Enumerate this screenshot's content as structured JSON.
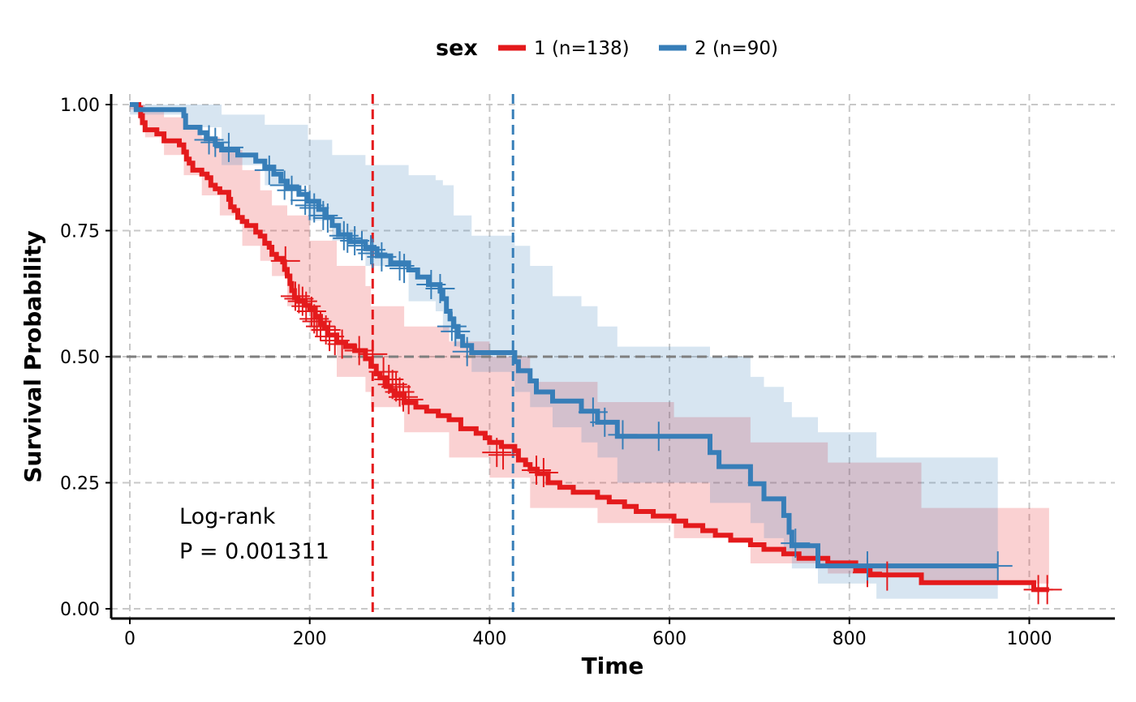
{
  "chart_data": {
    "type": "line",
    "subtype": "kaplan-meier",
    "xlabel": "Time",
    "ylabel": "Survival Probability",
    "xlim": [
      -20,
      1093
    ],
    "ylim": [
      -0.02,
      1.02
    ],
    "x_ticks": [
      0,
      200,
      400,
      600,
      800,
      1000
    ],
    "y_ticks": [
      0.0,
      0.25,
      0.5,
      0.75,
      1.0
    ],
    "y_tick_labels": [
      "0.00",
      "0.25",
      "0.50",
      "0.75",
      "1.00"
    ],
    "grid": true,
    "legend": {
      "title": "sex",
      "position": "top"
    },
    "reference_line_y": 0.5,
    "annotation": {
      "line1": "Log-rank",
      "line2": "P = 0.001311"
    },
    "series": [
      {
        "name": "1 (n=138)",
        "color": "#E41A1C",
        "median": 270,
        "steps": [
          [
            0,
            1.0
          ],
          [
            10,
            0.993
          ],
          [
            12,
            0.978
          ],
          [
            14,
            0.964
          ],
          [
            17,
            0.95
          ],
          [
            30,
            0.942
          ],
          [
            38,
            0.928
          ],
          [
            55,
            0.92
          ],
          [
            60,
            0.906
          ],
          [
            63,
            0.892
          ],
          [
            66,
            0.884
          ],
          [
            70,
            0.87
          ],
          [
            80,
            0.862
          ],
          [
            86,
            0.855
          ],
          [
            90,
            0.84
          ],
          [
            95,
            0.833
          ],
          [
            100,
            0.826
          ],
          [
            110,
            0.812
          ],
          [
            112,
            0.797
          ],
          [
            116,
            0.79
          ],
          [
            120,
            0.776
          ],
          [
            125,
            0.768
          ],
          [
            130,
            0.76
          ],
          [
            140,
            0.747
          ],
          [
            145,
            0.739
          ],
          [
            150,
            0.725
          ],
          [
            155,
            0.717
          ],
          [
            158,
            0.703
          ],
          [
            163,
            0.695
          ],
          [
            170,
            0.688
          ],
          [
            172,
            0.673
          ],
          [
            175,
            0.66
          ],
          [
            178,
            0.645
          ],
          [
            180,
            0.631
          ],
          [
            183,
            0.617
          ],
          [
            187,
            0.61
          ],
          [
            195,
            0.602
          ],
          [
            200,
            0.594
          ],
          [
            206,
            0.58
          ],
          [
            212,
            0.566
          ],
          [
            216,
            0.558
          ],
          [
            220,
            0.543
          ],
          [
            230,
            0.528
          ],
          [
            240,
            0.52
          ],
          [
            250,
            0.512
          ],
          [
            262,
            0.496
          ],
          [
            268,
            0.481
          ],
          [
            274,
            0.466
          ],
          [
            278,
            0.458
          ],
          [
            285,
            0.441
          ],
          [
            290,
            0.433
          ],
          [
            295,
            0.425
          ],
          [
            305,
            0.409
          ],
          [
            318,
            0.4
          ],
          [
            330,
            0.392
          ],
          [
            343,
            0.383
          ],
          [
            355,
            0.375
          ],
          [
            368,
            0.357
          ],
          [
            385,
            0.348
          ],
          [
            395,
            0.339
          ],
          [
            400,
            0.33
          ],
          [
            413,
            0.322
          ],
          [
            428,
            0.313
          ],
          [
            432,
            0.295
          ],
          [
            440,
            0.286
          ],
          [
            445,
            0.277
          ],
          [
            453,
            0.268
          ],
          [
            465,
            0.25
          ],
          [
            478,
            0.241
          ],
          [
            493,
            0.231
          ],
          [
            520,
            0.221
          ],
          [
            533,
            0.212
          ],
          [
            550,
            0.203
          ],
          [
            563,
            0.193
          ],
          [
            582,
            0.184
          ],
          [
            605,
            0.174
          ],
          [
            618,
            0.165
          ],
          [
            637,
            0.155
          ],
          [
            651,
            0.146
          ],
          [
            668,
            0.136
          ],
          [
            690,
            0.127
          ],
          [
            705,
            0.118
          ],
          [
            727,
            0.109
          ],
          [
            744,
            0.1
          ],
          [
            776,
            0.091
          ],
          [
            807,
            0.078
          ],
          [
            823,
            0.067
          ],
          [
            880,
            0.052
          ],
          [
            1005,
            0.038
          ],
          [
            1022,
            0.038
          ]
        ],
        "ci_upper": [
          [
            0,
            1.0
          ],
          [
            10,
            1.0
          ],
          [
            17,
            0.985
          ],
          [
            38,
            0.975
          ],
          [
            60,
            0.96
          ],
          [
            80,
            0.935
          ],
          [
            100,
            0.91
          ],
          [
            125,
            0.87
          ],
          [
            145,
            0.83
          ],
          [
            158,
            0.8
          ],
          [
            175,
            0.78
          ],
          [
            200,
            0.73
          ],
          [
            230,
            0.68
          ],
          [
            262,
            0.64
          ],
          [
            268,
            0.6
          ],
          [
            305,
            0.56
          ],
          [
            355,
            0.53
          ],
          [
            400,
            0.5
          ],
          [
            445,
            0.45
          ],
          [
            520,
            0.41
          ],
          [
            605,
            0.38
          ],
          [
            690,
            0.33
          ],
          [
            776,
            0.29
          ],
          [
            880,
            0.2
          ],
          [
            1022,
            0.2
          ]
        ],
        "ci_lower": [
          [
            0,
            0.99
          ],
          [
            10,
            0.97
          ],
          [
            17,
            0.935
          ],
          [
            38,
            0.9
          ],
          [
            60,
            0.86
          ],
          [
            80,
            0.82
          ],
          [
            100,
            0.78
          ],
          [
            125,
            0.72
          ],
          [
            145,
            0.69
          ],
          [
            158,
            0.66
          ],
          [
            175,
            0.6
          ],
          [
            200,
            0.55
          ],
          [
            230,
            0.46
          ],
          [
            262,
            0.43
          ],
          [
            268,
            0.4
          ],
          [
            305,
            0.35
          ],
          [
            355,
            0.3
          ],
          [
            400,
            0.26
          ],
          [
            445,
            0.2
          ],
          [
            520,
            0.17
          ],
          [
            605,
            0.14
          ],
          [
            690,
            0.09
          ],
          [
            776,
            0.07
          ],
          [
            880,
            0.05
          ],
          [
            1022,
            0.05
          ]
        ],
        "censored": [
          [
            173,
            0.69
          ],
          [
            184,
            0.62
          ],
          [
            188,
            0.615
          ],
          [
            192,
            0.61
          ],
          [
            196,
            0.6
          ],
          [
            202,
            0.59
          ],
          [
            205,
            0.575
          ],
          [
            208,
            0.57
          ],
          [
            212,
            0.56
          ],
          [
            218,
            0.553
          ],
          [
            222,
            0.54
          ],
          [
            228,
            0.532
          ],
          [
            236,
            0.525
          ],
          [
            255,
            0.512
          ],
          [
            270,
            0.505
          ],
          [
            282,
            0.47
          ],
          [
            288,
            0.455
          ],
          [
            292,
            0.445
          ],
          [
            296,
            0.44
          ],
          [
            300,
            0.43
          ],
          [
            304,
            0.42
          ],
          [
            310,
            0.415
          ],
          [
            408,
            0.31
          ],
          [
            415,
            0.305
          ],
          [
            452,
            0.275
          ],
          [
            460,
            0.27
          ],
          [
            820,
            0.072
          ],
          [
            842,
            0.065
          ],
          [
            1010,
            0.038
          ],
          [
            1020,
            0.038
          ]
        ]
      },
      {
        "name": "2 (n=90)",
        "color": "#377EB8",
        "median": 426,
        "steps": [
          [
            0,
            1.0
          ],
          [
            7,
            0.99
          ],
          [
            60,
            0.978
          ],
          [
            62,
            0.955
          ],
          [
            78,
            0.944
          ],
          [
            85,
            0.932
          ],
          [
            95,
            0.921
          ],
          [
            102,
            0.91
          ],
          [
            120,
            0.9
          ],
          [
            140,
            0.888
          ],
          [
            150,
            0.876
          ],
          [
            160,
            0.862
          ],
          [
            168,
            0.848
          ],
          [
            175,
            0.835
          ],
          [
            188,
            0.822
          ],
          [
            198,
            0.808
          ],
          [
            210,
            0.792
          ],
          [
            218,
            0.776
          ],
          [
            225,
            0.76
          ],
          [
            232,
            0.742
          ],
          [
            245,
            0.728
          ],
          [
            262,
            0.714
          ],
          [
            275,
            0.7
          ],
          [
            290,
            0.686
          ],
          [
            310,
            0.672
          ],
          [
            320,
            0.658
          ],
          [
            332,
            0.643
          ],
          [
            345,
            0.63
          ],
          [
            348,
            0.615
          ],
          [
            352,
            0.59
          ],
          [
            356,
            0.575
          ],
          [
            360,
            0.56
          ],
          [
            365,
            0.54
          ],
          [
            370,
            0.522
          ],
          [
            380,
            0.508
          ],
          [
            428,
            0.49
          ],
          [
            432,
            0.472
          ],
          [
            445,
            0.452
          ],
          [
            452,
            0.43
          ],
          [
            470,
            0.412
          ],
          [
            502,
            0.392
          ],
          [
            520,
            0.37
          ],
          [
            542,
            0.342
          ],
          [
            645,
            0.31
          ],
          [
            655,
            0.282
          ],
          [
            690,
            0.248
          ],
          [
            705,
            0.218
          ],
          [
            727,
            0.185
          ],
          [
            733,
            0.152
          ],
          [
            736,
            0.125
          ],
          [
            765,
            0.085
          ],
          [
            965,
            0.085
          ]
        ],
        "ci_upper": [
          [
            0,
            1.0
          ],
          [
            60,
            1.0
          ],
          [
            102,
            0.98
          ],
          [
            150,
            0.96
          ],
          [
            198,
            0.93
          ],
          [
            225,
            0.9
          ],
          [
            262,
            0.88
          ],
          [
            310,
            0.86
          ],
          [
            340,
            0.85
          ],
          [
            348,
            0.84
          ],
          [
            360,
            0.78
          ],
          [
            380,
            0.74
          ],
          [
            428,
            0.72
          ],
          [
            445,
            0.68
          ],
          [
            470,
            0.62
          ],
          [
            502,
            0.6
          ],
          [
            520,
            0.56
          ],
          [
            542,
            0.52
          ],
          [
            645,
            0.5
          ],
          [
            690,
            0.46
          ],
          [
            705,
            0.44
          ],
          [
            727,
            0.41
          ],
          [
            736,
            0.38
          ],
          [
            765,
            0.35
          ],
          [
            830,
            0.3
          ],
          [
            965,
            0.27
          ]
        ],
        "ci_lower": [
          [
            0,
            0.98
          ],
          [
            60,
            0.955
          ],
          [
            102,
            0.88
          ],
          [
            150,
            0.84
          ],
          [
            198,
            0.77
          ],
          [
            225,
            0.73
          ],
          [
            262,
            0.68
          ],
          [
            310,
            0.61
          ],
          [
            340,
            0.59
          ],
          [
            348,
            0.55
          ],
          [
            360,
            0.52
          ],
          [
            380,
            0.47
          ],
          [
            428,
            0.43
          ],
          [
            445,
            0.4
          ],
          [
            470,
            0.36
          ],
          [
            502,
            0.33
          ],
          [
            520,
            0.3
          ],
          [
            542,
            0.25
          ],
          [
            645,
            0.21
          ],
          [
            690,
            0.17
          ],
          [
            705,
            0.14
          ],
          [
            727,
            0.11
          ],
          [
            736,
            0.08
          ],
          [
            765,
            0.05
          ],
          [
            830,
            0.02
          ],
          [
            965,
            0.02
          ]
        ],
        "censored": [
          [
            88,
            0.93
          ],
          [
            95,
            0.925
          ],
          [
            110,
            0.915
          ],
          [
            155,
            0.87
          ],
          [
            172,
            0.84
          ],
          [
            180,
            0.83
          ],
          [
            195,
            0.81
          ],
          [
            200,
            0.8
          ],
          [
            205,
            0.795
          ],
          [
            215,
            0.78
          ],
          [
            220,
            0.775
          ],
          [
            238,
            0.74
          ],
          [
            242,
            0.735
          ],
          [
            250,
            0.73
          ],
          [
            258,
            0.72
          ],
          [
            268,
            0.712
          ],
          [
            270,
            0.705
          ],
          [
            280,
            0.698
          ],
          [
            300,
            0.68
          ],
          [
            305,
            0.675
          ],
          [
            335,
            0.643
          ],
          [
            345,
            0.635
          ],
          [
            358,
            0.56
          ],
          [
            362,
            0.55
          ],
          [
            375,
            0.51
          ],
          [
            515,
            0.39
          ],
          [
            528,
            0.37
          ],
          [
            548,
            0.345
          ],
          [
            588,
            0.342
          ],
          [
            740,
            0.13
          ],
          [
            820,
            0.085
          ],
          [
            965,
            0.085
          ]
        ]
      }
    ]
  }
}
